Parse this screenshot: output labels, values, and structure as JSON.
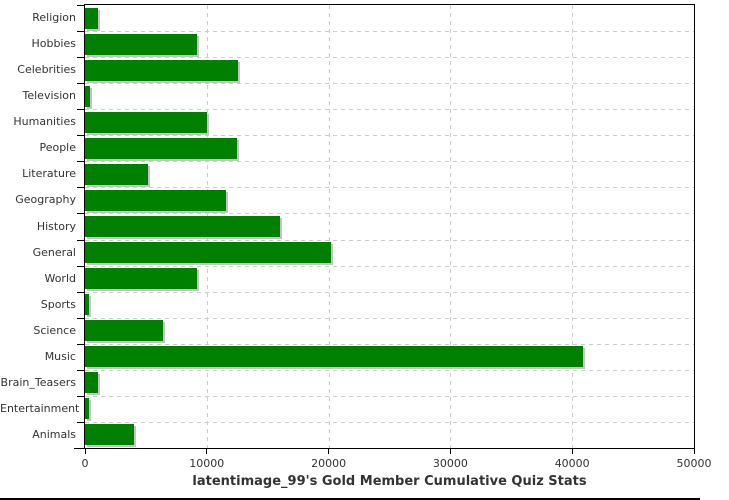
{
  "chart_data": {
    "type": "bar",
    "orientation": "horizontal",
    "title": "latentimage_99's Gold Member Cumulative Quiz Stats",
    "categories": [
      "Religion",
      "Hobbies",
      "Celebrities",
      "Television",
      "Humanities",
      "People",
      "Literature",
      "Geography",
      "History",
      "General",
      "World",
      "Sports",
      "Science",
      "Music",
      "Brain_Teasers",
      "Entertainment",
      "Animals"
    ],
    "values": [
      1100,
      9200,
      12600,
      400,
      10000,
      12500,
      5200,
      11600,
      16000,
      20200,
      9200,
      300,
      6400,
      40900,
      1100,
      300,
      4000
    ],
    "xlabel": "",
    "ylabel": "",
    "xlim": [
      0,
      50000
    ],
    "x_tick_values": [
      0,
      10000,
      20000,
      30000,
      40000,
      50000
    ],
    "x_tick_labels": [
      "0",
      "10000",
      "20000",
      "30000",
      "40000",
      "50000"
    ],
    "grid": true,
    "legend": false,
    "bar_color": "#008000",
    "bar_shadow_color": "#c4c4c4",
    "grid_color": "#cccccc",
    "axis_color": "#000000",
    "text_color": "#333333",
    "background_color": "#ffffff"
  }
}
